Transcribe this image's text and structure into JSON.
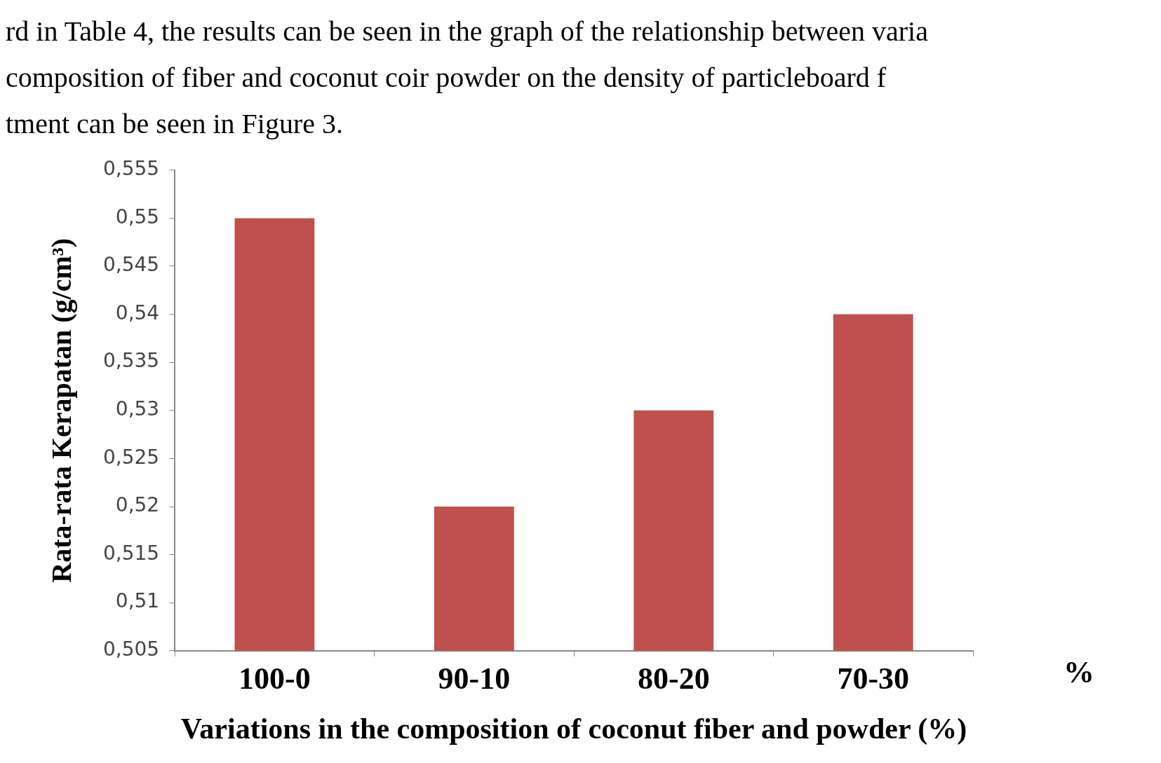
{
  "chart_data": {
    "type": "bar",
    "xlabel": "Variations in the composition of coconut fiber and powder (%)",
    "ylabel": "Rata-rata Kerapatan (g/cm³)",
    "annotations": [
      "rd in Table 4, the results can be seen in the graph of the relationship between varia",
      "composition of fiber and coconut coir powder on the density of particleboard f",
      "tment can be seen in Figure 3.",
      "%"
    ],
    "categories": [
      "100-0",
      "90-10",
      "80-20",
      "70-30"
    ],
    "values": [
      0.55,
      0.52,
      0.53,
      0.54
    ],
    "color": "#c0504d",
    "ylim": [
      0.505,
      0.555
    ],
    "yticks": [
      {
        "value": 0.505,
        "label": "0,505"
      },
      {
        "value": 0.51,
        "label": "0,51"
      },
      {
        "value": 0.515,
        "label": "0,515"
      },
      {
        "value": 0.52,
        "label": "0,52"
      },
      {
        "value": 0.525,
        "label": "0,525"
      },
      {
        "value": 0.53,
        "label": "0,53"
      },
      {
        "value": 0.535,
        "label": "0,535"
      },
      {
        "value": 0.54,
        "label": "0,54"
      },
      {
        "value": 0.545,
        "label": "0,545"
      },
      {
        "value": 0.55,
        "label": "0,55"
      },
      {
        "value": 0.555,
        "label": "0,555"
      }
    ]
  }
}
